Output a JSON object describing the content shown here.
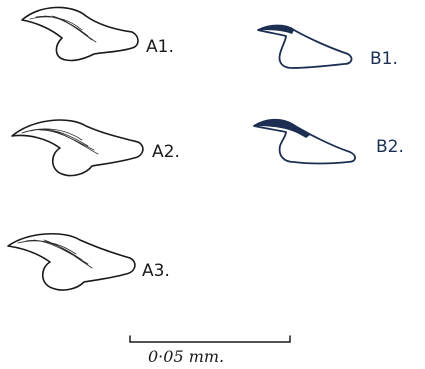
{
  "figure": {
    "specimens": [
      {
        "id": "A1",
        "label": "A1."
      },
      {
        "id": "A2",
        "label": "A2."
      },
      {
        "id": "A3",
        "label": "A3."
      },
      {
        "id": "B1",
        "label": "B1."
      },
      {
        "id": "B2",
        "label": "B2."
      }
    ],
    "scale_bar": {
      "label": "0·05 mm."
    },
    "colors": {
      "ink_a": "#1a1a1a",
      "ink_b": "#1c2f52"
    }
  }
}
